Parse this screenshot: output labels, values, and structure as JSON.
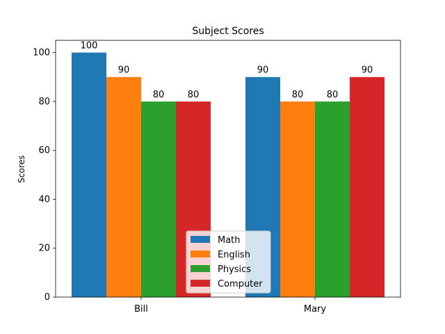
{
  "chart_data": {
    "type": "bar",
    "title": "Subject Scores",
    "xlabel": "",
    "ylabel": "Scores",
    "categories": [
      "Bill",
      "Mary"
    ],
    "series": [
      {
        "name": "Math",
        "values": [
          100,
          90
        ],
        "color": "#1f77b4"
      },
      {
        "name": "English",
        "values": [
          90,
          80
        ],
        "color": "#ff7f0e"
      },
      {
        "name": "Physics",
        "values": [
          80,
          80
        ],
        "color": "#2ca02c"
      },
      {
        "name": "Computer",
        "values": [
          80,
          90
        ],
        "color": "#d62728"
      }
    ],
    "ylim": [
      0,
      105
    ],
    "yticks": [
      0,
      20,
      40,
      60,
      80,
      100
    ],
    "grid": false,
    "legend_position": "lower center"
  }
}
